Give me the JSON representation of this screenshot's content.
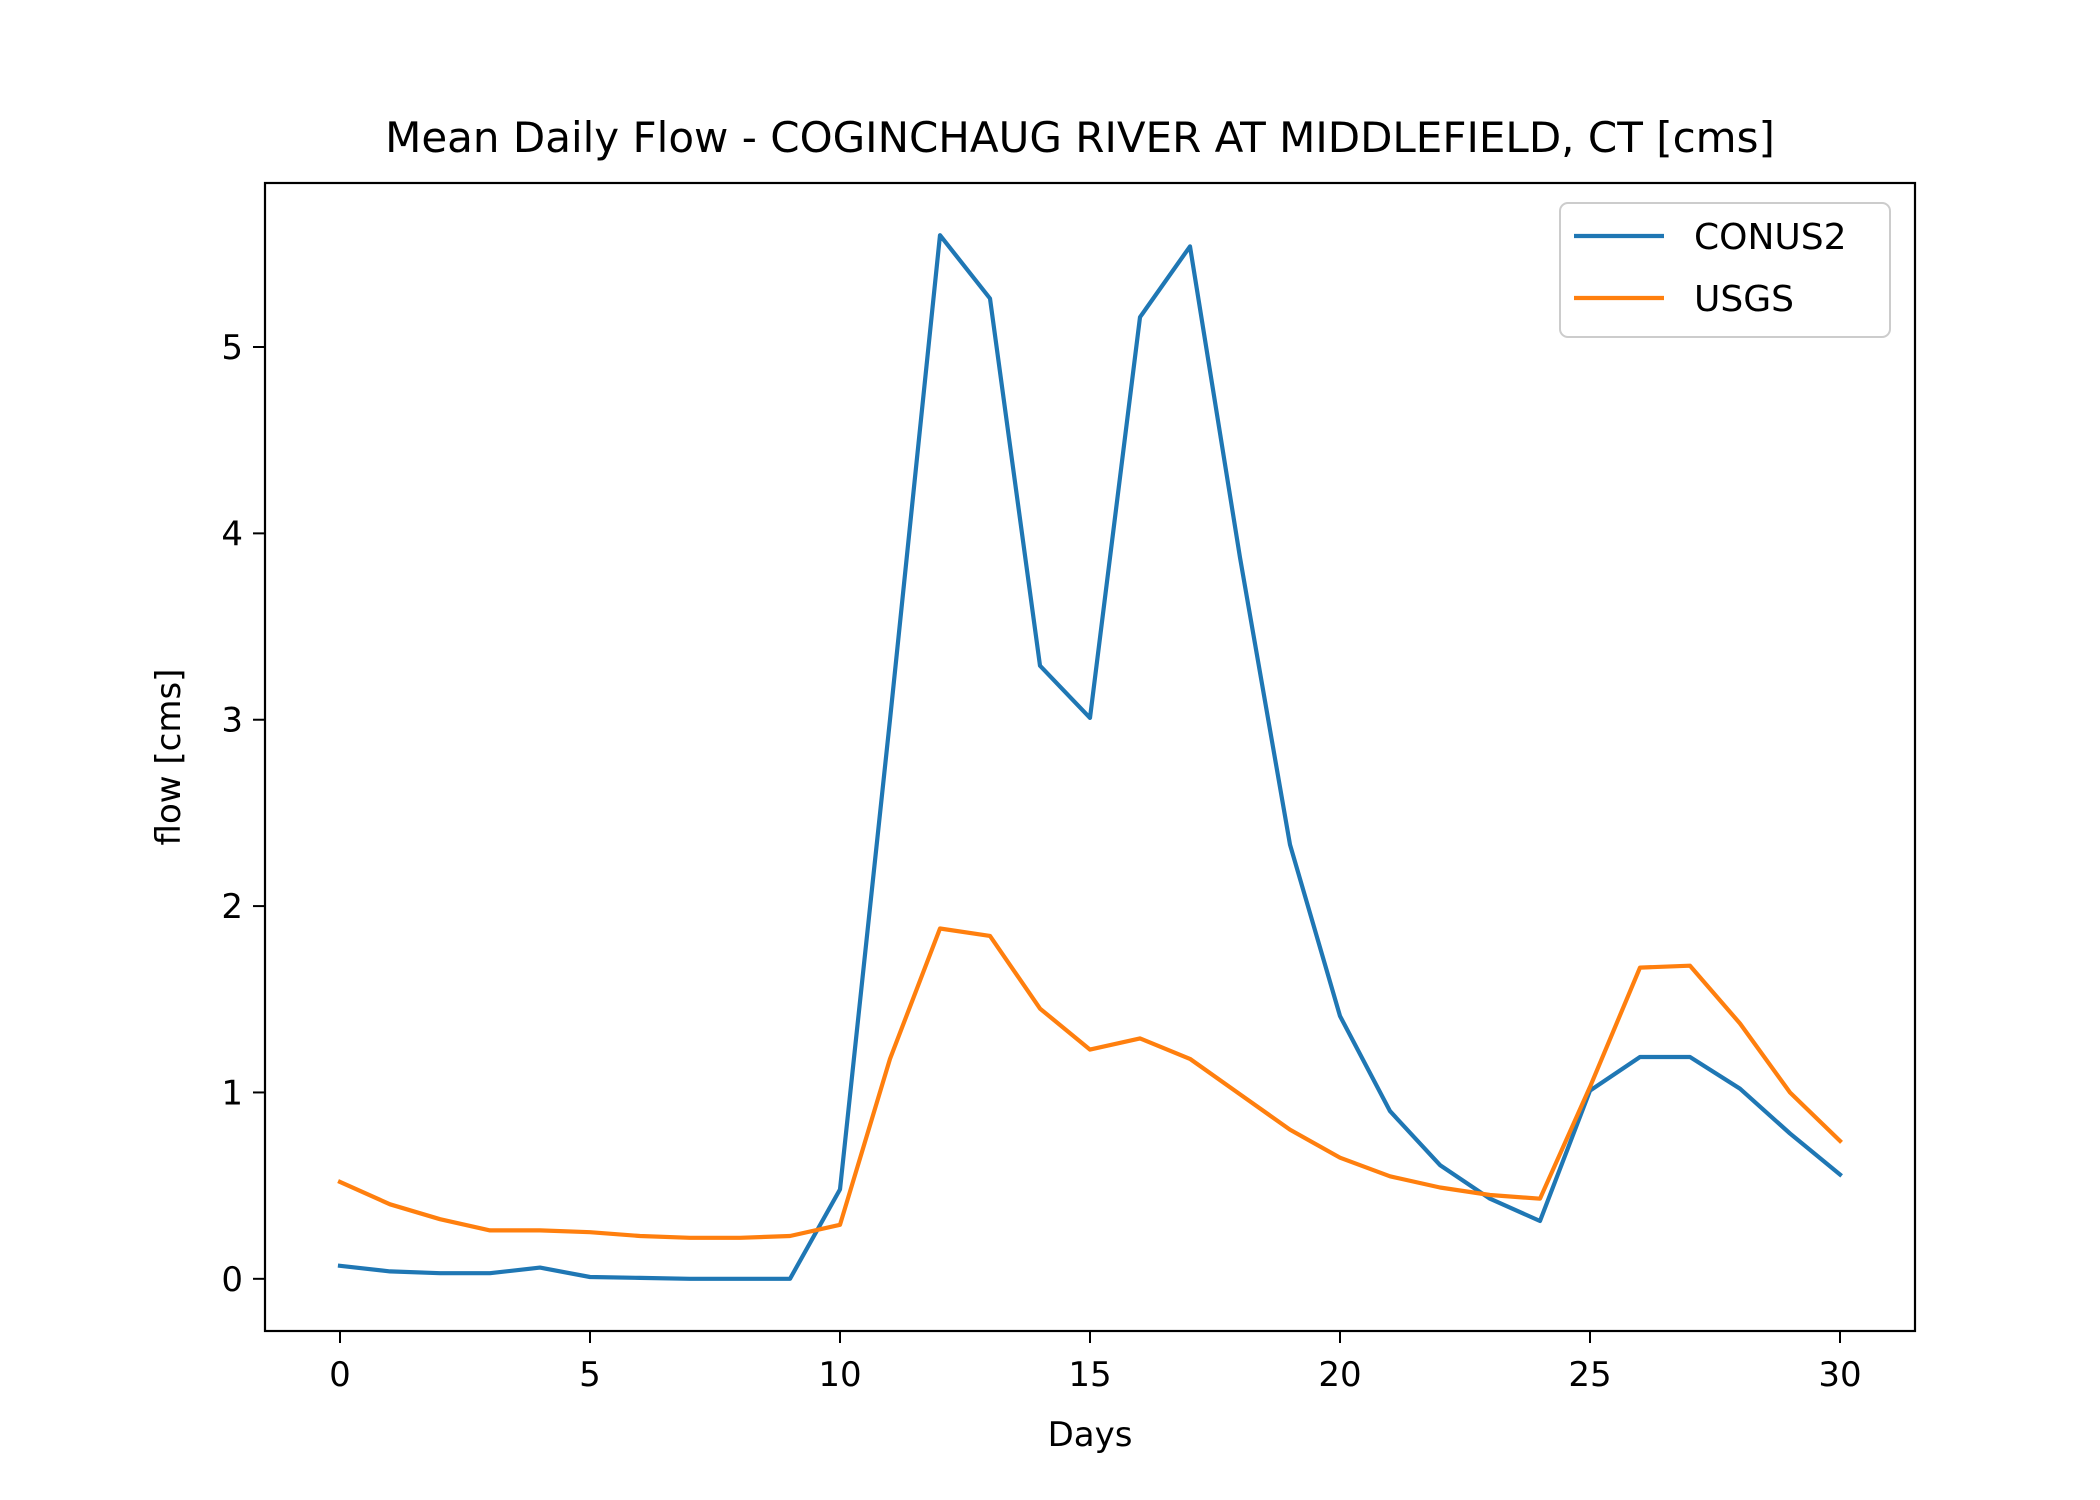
{
  "chart_data": {
    "type": "line",
    "title": "Mean Daily Flow - COGINCHAUG RIVER AT MIDDLEFIELD, CT [cms]",
    "xlabel": "Days",
    "ylabel": "flow [cms]",
    "xlim": [
      -1.5,
      31.5
    ],
    "ylim": [
      -0.28,
      5.88
    ],
    "xticks": [
      0,
      5,
      10,
      15,
      20,
      25,
      30
    ],
    "yticks": [
      0,
      1,
      2,
      3,
      4,
      5
    ],
    "grid": false,
    "legend_position": "top-right",
    "x": [
      0,
      1,
      2,
      3,
      4,
      5,
      6,
      7,
      8,
      9,
      10,
      11,
      12,
      13,
      14,
      15,
      16,
      17,
      18,
      19,
      20,
      21,
      22,
      23,
      24,
      25,
      26,
      27,
      28,
      29,
      30
    ],
    "series": [
      {
        "name": "CONUS2",
        "color": "#1f77b4",
        "values": [
          0.07,
          0.04,
          0.03,
          0.03,
          0.06,
          0.01,
          0.005,
          0.0,
          0.0,
          0.0,
          0.48,
          3.0,
          5.6,
          5.26,
          3.29,
          3.01,
          5.16,
          5.54,
          3.87,
          2.33,
          1.41,
          0.9,
          0.61,
          0.43,
          0.31,
          1.01,
          1.19,
          1.19,
          1.02,
          0.78,
          0.56
        ]
      },
      {
        "name": "USGS",
        "color": "#ff7f0e",
        "values": [
          0.52,
          0.4,
          0.32,
          0.26,
          0.26,
          0.25,
          0.23,
          0.22,
          0.22,
          0.23,
          0.29,
          1.18,
          1.88,
          1.84,
          1.45,
          1.23,
          1.29,
          1.18,
          0.99,
          0.8,
          0.65,
          0.55,
          0.49,
          0.45,
          0.43,
          1.03,
          1.67,
          1.68,
          1.37,
          1.0,
          0.74
        ]
      }
    ]
  }
}
